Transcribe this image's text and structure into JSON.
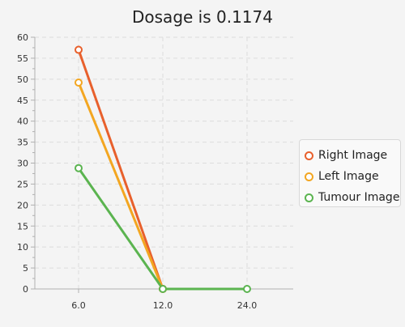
{
  "chart_data": {
    "type": "line",
    "title": "Dosage is 0.1174",
    "xlabel": "",
    "ylabel": "",
    "x": [
      "6.0",
      "12.0",
      "24.0"
    ],
    "ylim": [
      0,
      60
    ],
    "yticks": [
      0,
      5,
      10,
      15,
      20,
      25,
      30,
      35,
      40,
      45,
      50,
      55,
      60
    ],
    "grid": true,
    "legend_position": "right",
    "series": [
      {
        "name": "Right Image",
        "color": "#e8602c",
        "values": [
          57,
          0,
          null
        ]
      },
      {
        "name": "Left Image",
        "color": "#f3a621",
        "values": [
          49.2,
          0,
          null
        ]
      },
      {
        "name": "Tumour Image",
        "color": "#5bb450",
        "values": [
          28.8,
          0,
          0
        ]
      }
    ]
  }
}
